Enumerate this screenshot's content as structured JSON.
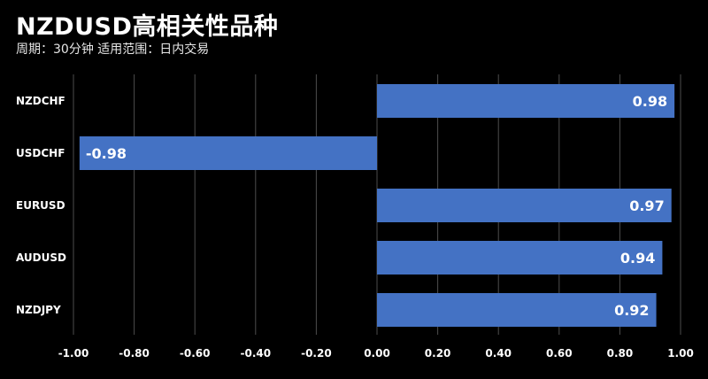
{
  "header": {
    "title": "NZDUSD高相关性品种",
    "subtitle": "周期：30分钟  适用范围：日内交易"
  },
  "colors": {
    "background": "#000000",
    "bar": "#4472c4",
    "grid": "#4d4d4d",
    "text": "#ffffff"
  },
  "chart_data": {
    "type": "bar",
    "orientation": "horizontal",
    "title": "NZDUSD高相关性品种",
    "subtitle": "周期：30分钟  适用范围：日内交易",
    "categories": [
      "NZDCHF",
      "USDCHF",
      "EURUSD",
      "AUDUSD",
      "NZDJPY"
    ],
    "values": [
      0.98,
      -0.98,
      0.97,
      0.94,
      0.92
    ],
    "data_labels": [
      "0.98",
      "-0.98",
      "0.97",
      "0.94",
      "0.92"
    ],
    "xlim": [
      -1.0,
      1.0
    ],
    "x_ticks": [
      -1.0,
      -0.8,
      -0.6,
      -0.4,
      -0.2,
      0.0,
      0.2,
      0.4,
      0.6,
      0.8,
      1.0
    ],
    "x_tick_labels": [
      "-1.00",
      "-0.80",
      "-0.60",
      "-0.40",
      "-0.20",
      "0.00",
      "0.20",
      "0.40",
      "0.60",
      "0.80",
      "1.00"
    ],
    "xlabel": "",
    "ylabel": "",
    "grid": "vertical",
    "legend": "none"
  }
}
